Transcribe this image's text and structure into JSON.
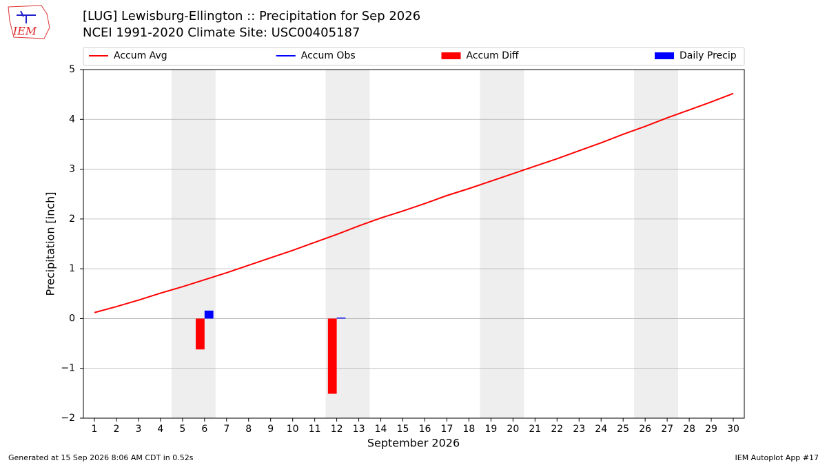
{
  "logo_text": "IEM",
  "footer_left": "Generated at 15 Sep 2026 8:06 AM CDT in 0.52s",
  "footer_right": "IEM Autoplot App #17",
  "chart_data": {
    "type": "combo",
    "title": "[LUG] Lewisburg-Ellington :: Precipitation for Sep 2026",
    "subtitle": "NCEI 1991-2020 Climate Site: USC00405187",
    "x_label": "September 2026",
    "y_label": "Precipitation [inch]",
    "x": [
      1,
      2,
      3,
      4,
      5,
      6,
      7,
      8,
      9,
      10,
      11,
      12,
      13,
      14,
      15,
      16,
      17,
      18,
      19,
      20,
      21,
      22,
      23,
      24,
      25,
      26,
      27,
      28,
      29,
      30
    ],
    "xlim": [
      0.5,
      30.5
    ],
    "xticks": [
      1,
      2,
      3,
      4,
      5,
      6,
      7,
      8,
      9,
      10,
      11,
      12,
      13,
      14,
      15,
      16,
      17,
      18,
      19,
      20,
      21,
      22,
      23,
      24,
      25,
      26,
      27,
      28,
      29,
      30
    ],
    "ylim": [
      -2,
      5
    ],
    "yticks": [
      {
        "value": -2,
        "label": "−2"
      },
      {
        "value": -1,
        "label": "−1"
      },
      0,
      1,
      2,
      3,
      4,
      5
    ],
    "grid": true,
    "legend": "top",
    "highlight_ranges": [
      [
        4.5,
        6.5
      ],
      [
        11.5,
        13.5
      ],
      [
        18.5,
        20.5
      ],
      [
        25.5,
        27.5
      ]
    ],
    "highlight_color": "#eeeeee",
    "series": [
      {
        "name": "Accum Avg",
        "type": "line",
        "color": "#ff0000",
        "values": [
          0.12,
          0.24,
          0.37,
          0.51,
          0.64,
          0.78,
          0.92,
          1.07,
          1.22,
          1.37,
          1.53,
          1.69,
          1.86,
          2.02,
          2.16,
          2.31,
          2.47,
          2.61,
          2.76,
          2.91,
          3.06,
          3.21,
          3.37,
          3.53,
          3.7,
          3.86,
          4.03,
          4.19,
          4.35,
          4.52
        ]
      },
      {
        "name": "Accum Obs",
        "type": "line",
        "color": "#0000ff",
        "values": [
          null,
          null,
          null,
          null,
          null,
          null,
          null,
          null,
          null,
          null,
          null,
          null,
          null,
          null,
          null,
          null,
          null,
          null,
          null,
          null,
          null,
          null,
          null,
          null,
          null,
          null,
          null,
          null,
          null,
          null
        ]
      },
      {
        "name": "Accum Diff",
        "type": "bar",
        "color": "#ff0000",
        "values": [
          null,
          null,
          null,
          null,
          null,
          -0.62,
          null,
          null,
          null,
          null,
          null,
          -1.51,
          null,
          null,
          null,
          null,
          null,
          null,
          null,
          null,
          null,
          null,
          null,
          null,
          null,
          null,
          null,
          null,
          null,
          null
        ]
      },
      {
        "name": "Daily Precip",
        "type": "bar",
        "color": "#0000ff",
        "values": [
          null,
          null,
          null,
          null,
          null,
          0.16,
          null,
          null,
          null,
          null,
          null,
          0.02,
          null,
          null,
          null,
          null,
          null,
          null,
          null,
          null,
          null,
          null,
          null,
          null,
          null,
          null,
          null,
          null,
          null,
          null
        ]
      }
    ]
  }
}
